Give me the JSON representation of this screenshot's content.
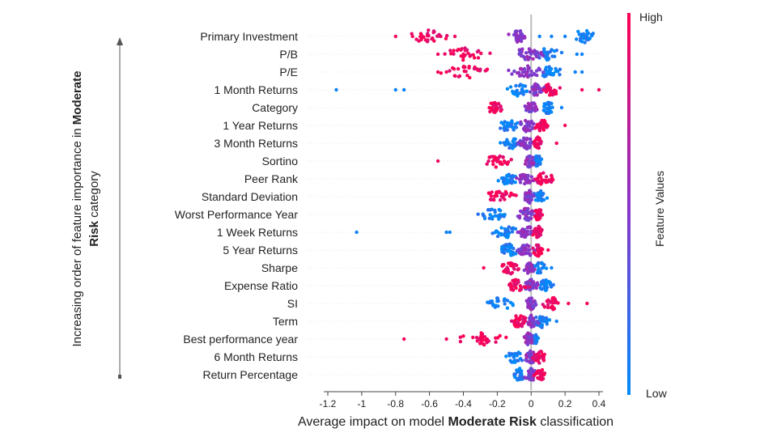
{
  "chart_data": {
    "type": "scatter",
    "subtype": "beeswarm",
    "xaxis": {
      "label_prefix": "Average impact on model ",
      "label_bold": "Moderate Risk",
      "label_suffix": " classification",
      "xlim": [
        -1.25,
        0.5
      ],
      "ticks": [
        -1.2,
        -1.0,
        -0.8,
        -0.6,
        -0.4,
        -0.2,
        0.0,
        0.2,
        0.4
      ],
      "tick_labels": [
        "-1.2",
        "-1",
        "-0.8",
        "-0.6",
        "-0.4",
        "-0.2",
        "0",
        "0.2",
        "0.4"
      ]
    },
    "yaxis": {
      "label_line1_normal": "Increasing order of feature importance in ",
      "label_line1_bold": "Moderate",
      "label_line2_bold": "Risk",
      "label_line2_normal": " category"
    },
    "colorbar": {
      "title": "Feature Values",
      "high_label": "High",
      "low_label": "Low",
      "high_color": "#ff0052",
      "low_color": "#008bfb"
    },
    "zero_line": true,
    "features": [
      {
        "name": "Primary Investment",
        "high_range": [
          -0.76,
          -0.45
        ],
        "mid_range": [
          -0.15,
          0.0
        ],
        "low_range": [
          0.2,
          0.42
        ],
        "mid_center": -0.1,
        "outliers": [
          -0.8,
          -0.7,
          -0.45,
          0.05,
          0.12,
          0.2
        ]
      },
      {
        "name": "P/B",
        "high_range": [
          -0.56,
          -0.2
        ],
        "mid_range": [
          -0.15,
          0.1
        ],
        "low_range": [
          0.0,
          0.2
        ],
        "mid_center": 0.0,
        "outliers": [
          -0.55,
          -0.4,
          0.27,
          0.3
        ]
      },
      {
        "name": "P/E",
        "high_range": [
          -0.56,
          -0.2
        ],
        "mid_range": [
          -0.15,
          0.1
        ],
        "low_range": [
          0.0,
          0.2
        ],
        "mid_center": 0.0,
        "outliers": [
          -0.55,
          -0.5,
          0.26,
          0.3
        ]
      },
      {
        "name": "1 Month Returns",
        "high_range": [
          0.05,
          0.18
        ],
        "mid_range": [
          -0.05,
          0.12
        ],
        "low_range": [
          -0.15,
          0.0
        ],
        "mid_center": 0.05,
        "outliers": [
          -1.15,
          -0.8,
          -0.75,
          0.3,
          0.4
        ]
      },
      {
        "name": "Category",
        "high_range": [
          -0.28,
          -0.15
        ],
        "mid_range": [
          -0.05,
          0.05
        ],
        "low_range": [
          0.05,
          0.15
        ],
        "mid_center": 0.0,
        "outliers": [
          0.18
        ]
      },
      {
        "name": "1 Year Returns",
        "high_range": [
          0.0,
          0.12
        ],
        "mid_range": [
          -0.1,
          0.05
        ],
        "low_range": [
          -0.22,
          -0.05
        ],
        "mid_center": 0.0,
        "outliers": [
          0.2
        ]
      },
      {
        "name": "3 Month Returns",
        "high_range": [
          0.0,
          0.08
        ],
        "mid_range": [
          -0.1,
          0.03
        ],
        "low_range": [
          -0.2,
          -0.05
        ],
        "mid_center": 0.0,
        "outliers": [
          0.15
        ]
      },
      {
        "name": "Sortino",
        "high_range": [
          -0.3,
          -0.1
        ],
        "mid_range": [
          -0.05,
          0.03
        ],
        "low_range": [
          0.0,
          0.08
        ],
        "mid_center": 0.0,
        "outliers": [
          -0.55
        ]
      },
      {
        "name": "Peer Rank",
        "high_range": [
          0.0,
          0.15
        ],
        "mid_range": [
          -0.1,
          0.05
        ],
        "low_range": [
          -0.22,
          -0.05
        ],
        "mid_center": 0.0,
        "outliers": []
      },
      {
        "name": "Standard Deviation",
        "high_range": [
          -0.32,
          -0.05
        ],
        "mid_range": [
          -0.05,
          0.03
        ],
        "low_range": [
          0.0,
          0.1
        ],
        "mid_center": 0.0,
        "outliers": []
      },
      {
        "name": "Worst Performance Year",
        "high_range": [
          0.0,
          0.08
        ],
        "mid_range": [
          -0.1,
          0.05
        ],
        "low_range": [
          -0.35,
          -0.1
        ],
        "mid_center": 0.0,
        "outliers": []
      },
      {
        "name": "1 Week Returns",
        "high_range": [
          0.0,
          0.08
        ],
        "mid_range": [
          -0.1,
          0.05
        ],
        "low_range": [
          -0.25,
          -0.05
        ],
        "mid_center": 0.0,
        "outliers": [
          -1.03,
          -0.5,
          -0.48
        ]
      },
      {
        "name": "5 Year Returns",
        "high_range": [
          0.0,
          0.08
        ],
        "mid_range": [
          -0.1,
          0.05
        ],
        "low_range": [
          -0.22,
          -0.05
        ],
        "mid_center": 0.0,
        "outliers": [
          0.1
        ]
      },
      {
        "name": "Sharpe",
        "high_range": [
          -0.2,
          -0.05
        ],
        "mid_range": [
          -0.05,
          0.03
        ],
        "low_range": [
          0.0,
          0.1
        ],
        "mid_center": 0.0,
        "outliers": [
          -0.28,
          0.12
        ]
      },
      {
        "name": "Expense Ratio",
        "high_range": [
          -0.18,
          0.0
        ],
        "mid_range": [
          -0.05,
          0.05
        ],
        "low_range": [
          0.02,
          0.15
        ],
        "mid_center": 0.0,
        "outliers": []
      },
      {
        "name": "SI",
        "high_range": [
          0.05,
          0.2
        ],
        "mid_range": [
          -0.05,
          0.05
        ],
        "low_range": [
          -0.3,
          -0.05
        ],
        "mid_center": 0.0,
        "outliers": [
          0.33,
          0.22
        ]
      },
      {
        "name": "Term",
        "high_range": [
          -0.15,
          0.0
        ],
        "mid_range": [
          -0.05,
          0.05
        ],
        "low_range": [
          0.0,
          0.12
        ],
        "mid_center": 0.0,
        "outliers": [
          0.15
        ]
      },
      {
        "name": "Best performance year",
        "high_range": [
          -0.5,
          -0.1
        ],
        "mid_range": [
          -0.05,
          0.02
        ],
        "low_range": [
          -0.02,
          0.05
        ],
        "mid_center": 0.0,
        "outliers": [
          -0.75,
          -0.5,
          -0.3
        ]
      },
      {
        "name": "6 Month Returns",
        "high_range": [
          0.0,
          0.1
        ],
        "mid_range": [
          -0.05,
          0.05
        ],
        "low_range": [
          -0.18,
          -0.02
        ],
        "mid_center": 0.0,
        "outliers": []
      },
      {
        "name": "Return Percentage",
        "high_range": [
          0.0,
          0.1
        ],
        "mid_range": [
          -0.05,
          0.05
        ],
        "low_range": [
          -0.12,
          -0.02
        ],
        "mid_center": 0.0,
        "outliers": []
      }
    ]
  }
}
